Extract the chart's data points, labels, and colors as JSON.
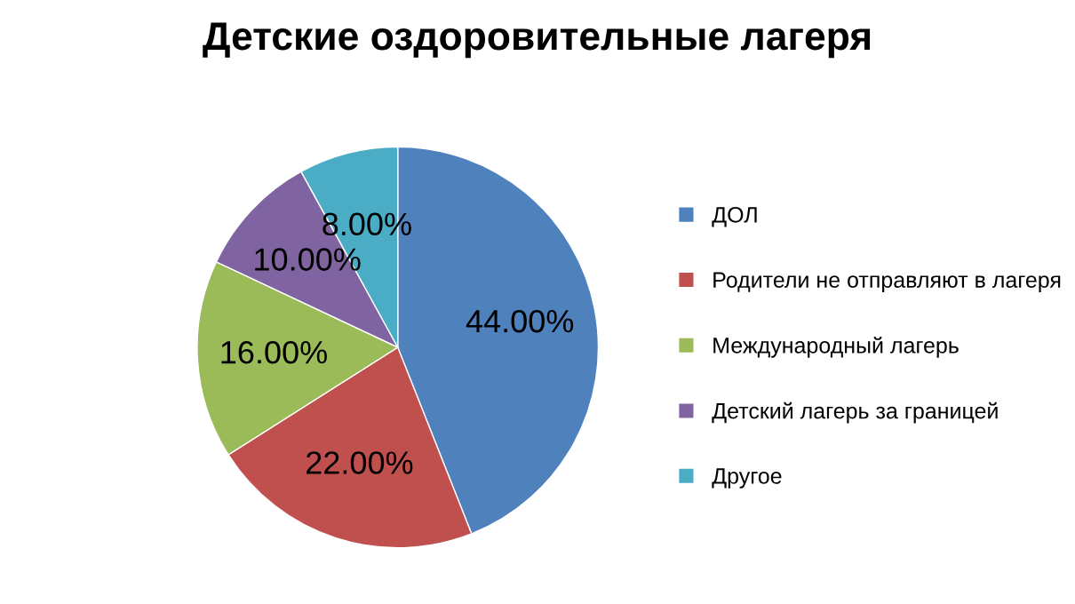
{
  "chart_data": {
    "type": "pie",
    "title": "Детские оздоровительные лагеря",
    "categories": [
      "ДОЛ",
      "Родители не отправляют в лагеря",
      "Международный лагерь",
      "Детский лагерь за границей",
      "Другое"
    ],
    "values": [
      44,
      22,
      16,
      10,
      8
    ],
    "colors": [
      "#4f81bd",
      "#c0504d",
      "#9bbb59",
      "#8064a2",
      "#4bacc6"
    ],
    "value_labels": [
      "44.00%",
      "22.00%",
      "16.00%",
      "10.00%",
      "8.00%"
    ],
    "legend": "right"
  }
}
